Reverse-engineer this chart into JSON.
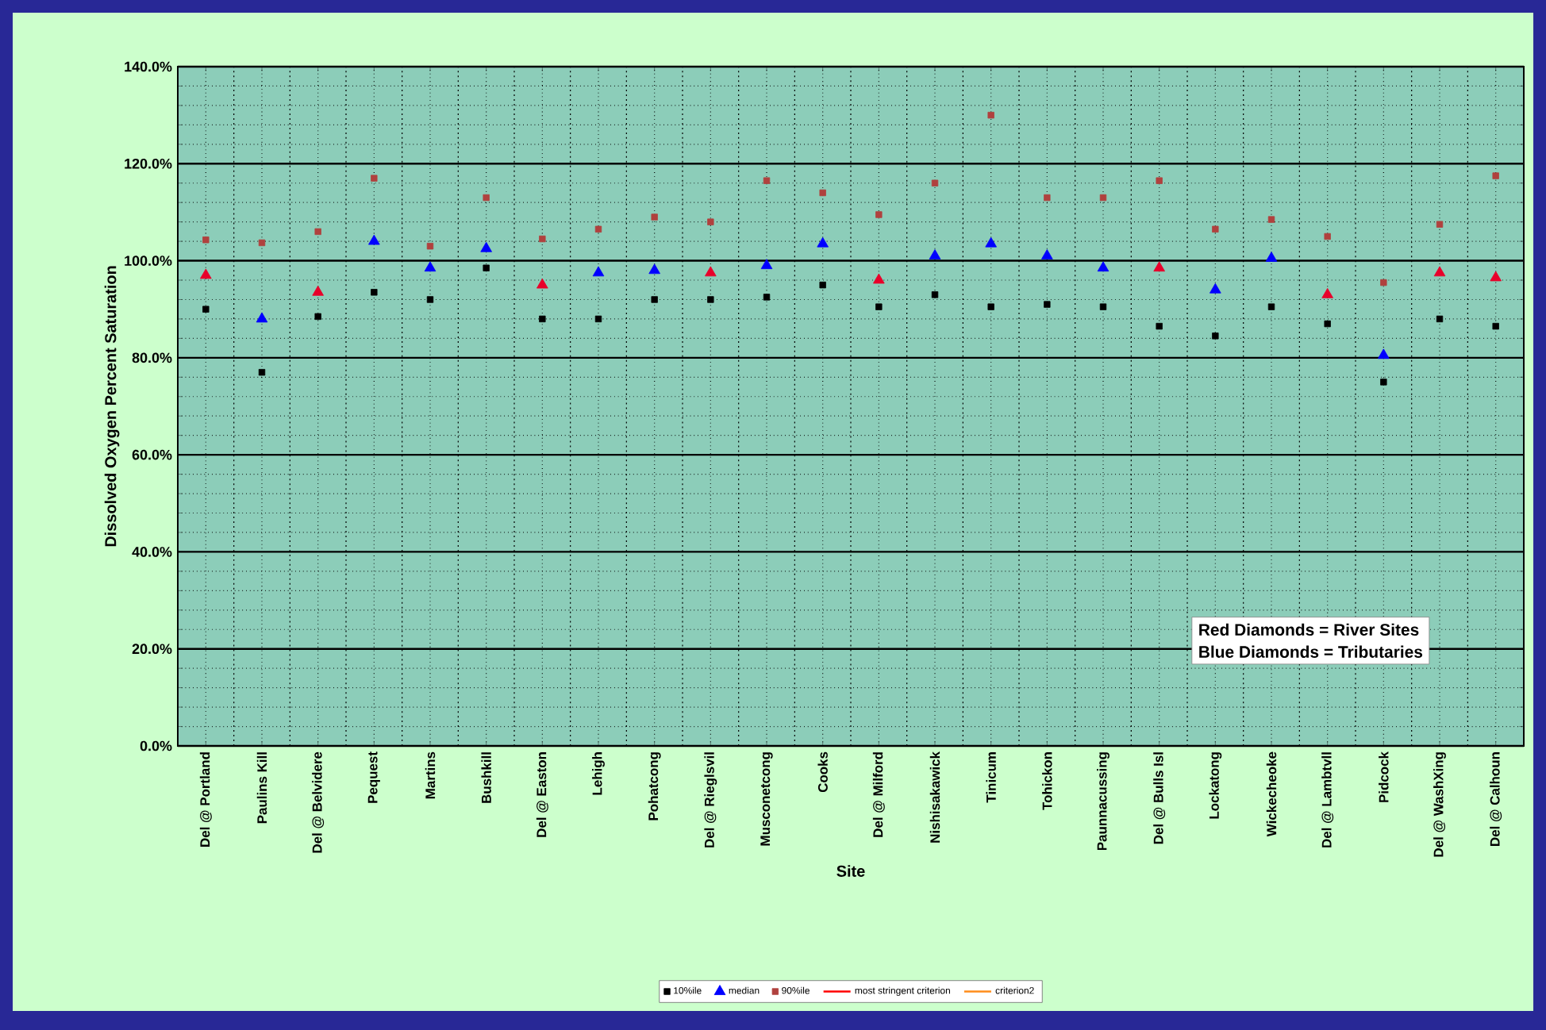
{
  "chart_data": {
    "type": "scatter",
    "xlabel": "Site",
    "ylabel": "Dissolved Oxygen Percent Saturation",
    "categories": [
      "Del @ Portland",
      "Paulins Kill",
      "Del @ Belvidere",
      "Pequest",
      "Martins",
      "Bushkill",
      "Del @ Easton",
      "Lehigh",
      "Pohatcong",
      "Del @ Rieglsvil",
      "Musconetcong",
      "Cooks",
      "Del @ Milford",
      "Nishisakawick",
      "Tinicum",
      "Tohickon",
      "Paunnacussing",
      "Del @ Bulls Isl",
      "Lockatong",
      "Wickecheoke",
      "Del @ Lambtvll",
      "Pidcock",
      "Del @ WashXing",
      "Del @ Calhoun"
    ],
    "series": [
      {
        "name": "10%ile",
        "color": "#000000",
        "marker": "square",
        "values": [
          90,
          77,
          88.5,
          93.5,
          92,
          98.5,
          88,
          88,
          92,
          92,
          92.5,
          95,
          90.5,
          93,
          90.5,
          91,
          90.5,
          86.5,
          84.5,
          90.5,
          87,
          75,
          88,
          86.5
        ]
      },
      {
        "name": "median",
        "color": "#0000ff",
        "marker": "triangle",
        "values": [
          97,
          88,
          93.5,
          104,
          98.5,
          102.5,
          95,
          97.5,
          98,
          97.5,
          99,
          103.5,
          96,
          101,
          103.5,
          101,
          98.5,
          98.5,
          94,
          100.5,
          93,
          80.5,
          97.5,
          96.5
        ],
        "colors": [
          "#e8002a",
          "#0000ff",
          "#e8002a",
          "#0000ff",
          "#0000ff",
          "#0000ff",
          "#e8002a",
          "#0000ff",
          "#0000ff",
          "#e8002a",
          "#0000ff",
          "#0000ff",
          "#e8002a",
          "#0000ff",
          "#0000ff",
          "#0000ff",
          "#0000ff",
          "#e8002a",
          "#0000ff",
          "#0000ff",
          "#e8002a",
          "#0000ff",
          "#e8002a",
          "#e8002a"
        ]
      },
      {
        "name": "90%ile",
        "color": "#b0413e",
        "marker": "square",
        "values": [
          104.3,
          103.7,
          106,
          117,
          103,
          113,
          104.5,
          106.5,
          109,
          108,
          116.5,
          114,
          109.5,
          116,
          130,
          113,
          113,
          116.5,
          106.5,
          108.5,
          105,
          95.5,
          107.5,
          117.5
        ]
      },
      {
        "name": "most stringent criterion",
        "type": "line",
        "color": "#ff0000",
        "values": [
          null,
          null,
          null,
          null,
          null,
          null,
          null,
          null,
          null,
          null,
          null,
          null,
          null,
          null,
          null,
          null,
          null,
          null,
          null,
          null,
          null,
          null,
          null,
          null
        ]
      },
      {
        "name": "criterion2",
        "type": "line",
        "color": "#ff8c1a",
        "values": [
          null,
          null,
          null,
          null,
          null,
          null,
          null,
          null,
          null,
          null,
          null,
          null,
          null,
          null,
          null,
          null,
          null,
          null,
          null,
          null,
          null,
          null,
          null,
          null
        ]
      }
    ],
    "ylim": [
      0,
      140
    ],
    "yticks": [
      {
        "value": 0,
        "label": "0.0%"
      },
      {
        "value": 20,
        "label": "20.0%"
      },
      {
        "value": 40,
        "label": "40.0%"
      },
      {
        "value": 60,
        "label": "60.0%"
      },
      {
        "value": 80,
        "label": "80.0%"
      },
      {
        "value": 100,
        "label": "100.0%"
      },
      {
        "value": 120,
        "label": "120.0%"
      },
      {
        "value": 140,
        "label": "140.0%"
      }
    ],
    "grid": true,
    "legend": "bottom",
    "annotations": [
      "Red Diamonds = River Sites",
      "Blue Diamonds = Tributaries"
    ]
  }
}
